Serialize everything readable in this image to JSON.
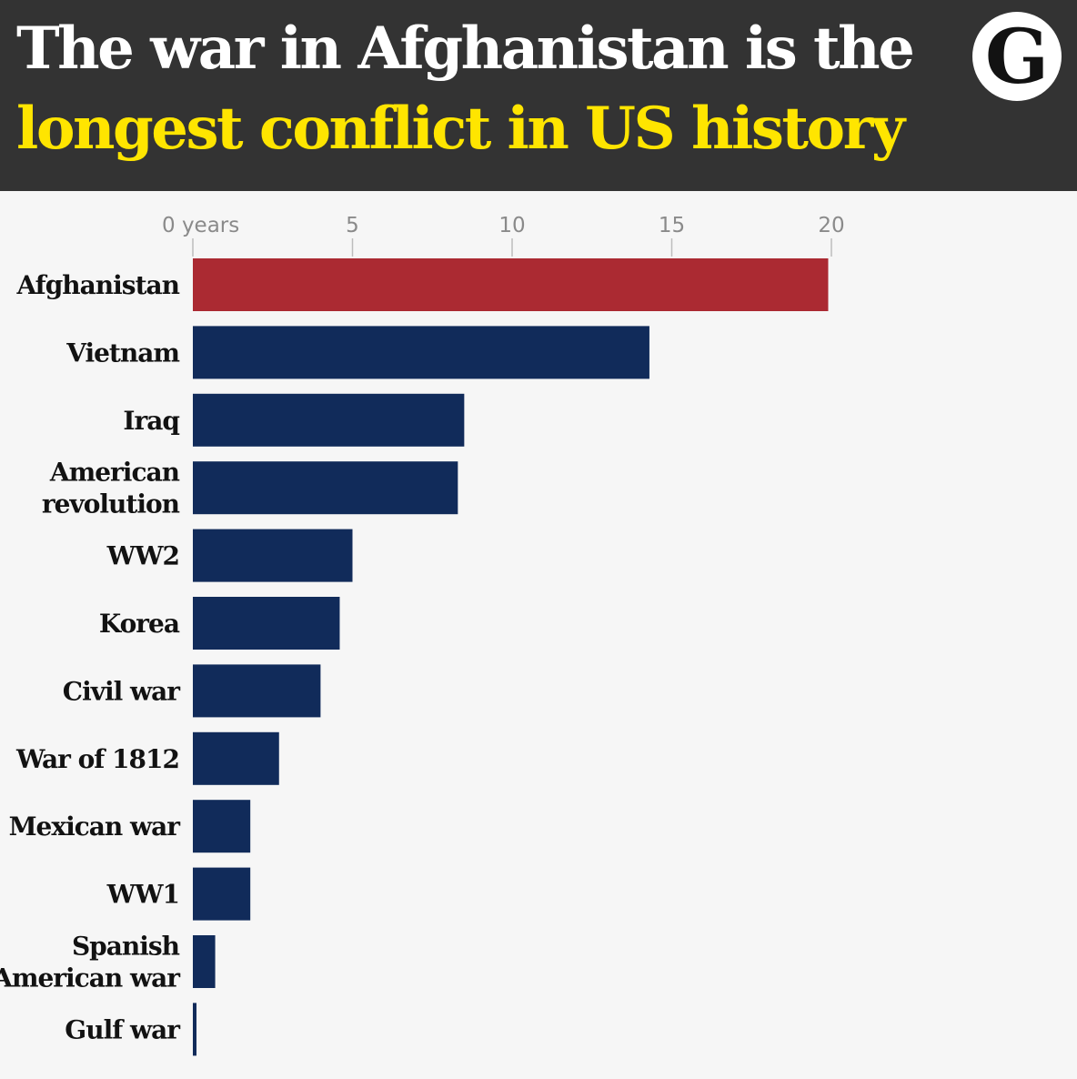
{
  "header": {
    "title_line1": "The war in Afghanistan is the",
    "title_line2": "longest conflict in US history",
    "logo_letter": "G"
  },
  "colors": {
    "header_bg": "#333333",
    "highlight": "#ab2a32",
    "bar": "#112b5a",
    "title_accent": "#ffe500"
  },
  "chart_data": {
    "type": "bar",
    "orientation": "horizontal",
    "title": "The war in Afghanistan is the longest conflict in US history",
    "xlim": [
      0,
      20
    ],
    "ticks": [
      {
        "value": 0,
        "label": "0 years"
      },
      {
        "value": 5,
        "label": "5"
      },
      {
        "value": 10,
        "label": "10"
      },
      {
        "value": 15,
        "label": "15"
      },
      {
        "value": 20,
        "label": "20"
      }
    ],
    "categories": [
      [
        "Afghanistan"
      ],
      [
        "Vietnam"
      ],
      [
        "Iraq"
      ],
      [
        "American",
        "revolution"
      ],
      [
        "WW2"
      ],
      [
        "Korea"
      ],
      [
        "Civil war"
      ],
      [
        "War of 1812"
      ],
      [
        "Mexican war"
      ],
      [
        "WW1"
      ],
      [
        "Spanish",
        "American war"
      ],
      [
        "Gulf war"
      ]
    ],
    "values": [
      19.9,
      14.3,
      8.5,
      8.3,
      5.0,
      4.6,
      4.0,
      2.7,
      1.8,
      1.8,
      0.7,
      0.1
    ],
    "highlight_index": 0
  }
}
